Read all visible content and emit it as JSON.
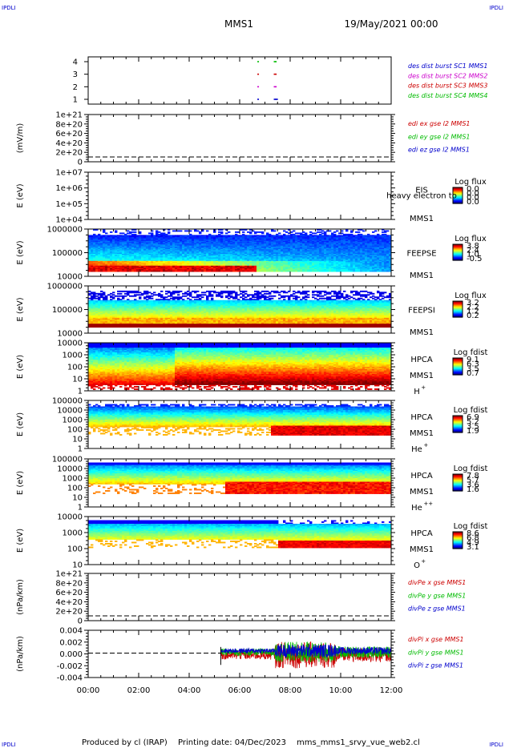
{
  "header": {
    "corner_label": "IPDLI",
    "spacecraft": "MMS1",
    "start_time": "19/May/2021 00:00"
  },
  "footer": {
    "produced_by": "Produced by cl (IRAP)",
    "printing_date": "Printing date: 04/Dec/2023",
    "filename": "mms_mms1_srvy_vue_web2.cl"
  },
  "colors": {
    "mms1": "#0000cc",
    "mms2": "#cc00cc",
    "mms3": "#cc0000",
    "mms4": "#00bb00"
  },
  "chart_data": [
    {
      "id": "burst",
      "type": "scatter",
      "yticks": [
        "4",
        "3",
        "2",
        "1"
      ],
      "legend": [
        {
          "label": "des dist burst SC1 MMS1",
          "color": "#0000cc"
        },
        {
          "label": "des dist burst SC2 MMS2",
          "color": "#cc00cc"
        },
        {
          "label": "des dist burst SC3 MMS3",
          "color": "#cc0000"
        },
        {
          "label": "des dist burst SC4 MMS4",
          "color": "#00bb00"
        }
      ],
      "bursts": [
        {
          "sc": 1,
          "times_h": [
            6.7,
            7.35,
            7.4,
            7.45
          ]
        },
        {
          "sc": 2,
          "times_h": [
            6.7,
            7.35,
            7.4
          ]
        },
        {
          "sc": 3,
          "times_h": [
            6.7,
            7.35,
            7.4
          ]
        },
        {
          "sc": 4,
          "times_h": [
            6.7,
            7.35,
            7.4
          ]
        }
      ]
    },
    {
      "id": "edi",
      "type": "line",
      "ylabel": "(mV/m)",
      "yticks": [
        "1e+21",
        "8e+20",
        "6e+20",
        "4e+20",
        "2e+20",
        "0"
      ],
      "legend": [
        {
          "label": "edi ex gse l2 MMS1",
          "color": "#cc0000"
        },
        {
          "label": "edi ey gse l2 MMS1",
          "color": "#00bb00"
        },
        {
          "label": "edi ez gse l2 MMS1",
          "color": "#0000cc"
        }
      ]
    },
    {
      "id": "eis",
      "type": "heatmap",
      "ylabel": "E (eV)",
      "yticks": [
        "1e+07",
        "1e+06",
        "1e+05",
        "1e+04"
      ],
      "instrument": "EIS",
      "overlay_text": "heavy electron to",
      "spacecraft": "MMS1",
      "colorbar_title": "Log flux",
      "colorbar_ticks": [
        "0.0",
        "0.0",
        "0.0",
        "0.0"
      ]
    },
    {
      "id": "feepse",
      "type": "heatmap",
      "ylabel": "E (eV)",
      "yticks": [
        "1000000",
        "100000",
        "10000"
      ],
      "instrument": "FEEPSE",
      "spacecraft": "MMS1",
      "colorbar_title": "Log flux",
      "colorbar_ticks": [
        "3.8",
        "2.4",
        "1.0",
        "-0.5"
      ]
    },
    {
      "id": "feepsi",
      "type": "heatmap",
      "ylabel": "E (eV)",
      "yticks": [
        "1000000",
        "100000",
        "10000"
      ],
      "instrument": "FEEPSI",
      "spacecraft": "MMS1",
      "colorbar_title": "Log flux",
      "colorbar_ticks": [
        "3.2",
        "2.2",
        "1.2",
        "0.2"
      ]
    },
    {
      "id": "hpca_h",
      "type": "heatmap",
      "ylabel": "E (eV)",
      "yticks": [
        "10000",
        "1000",
        "100",
        "10",
        "1"
      ],
      "instrument": "HPCA",
      "spacecraft": "MMS1",
      "species": "H",
      "species_sup": "+",
      "colorbar_title": "Log fdist",
      "colorbar_ticks": [
        "9.1",
        "6.3",
        "3.5",
        "0.7"
      ]
    },
    {
      "id": "hpca_he",
      "type": "heatmap",
      "ylabel": "E (eV)",
      "yticks": [
        "100000",
        "10000",
        "1000",
        "100",
        "10",
        "1"
      ],
      "instrument": "HPCA",
      "spacecraft": "MMS1",
      "species": "He",
      "species_sup": "+",
      "colorbar_title": "Log fdist",
      "colorbar_ticks": [
        "6.9",
        "5.2",
        "3.5",
        "1.9"
      ]
    },
    {
      "id": "hpca_hepp",
      "type": "heatmap",
      "ylabel": "E (eV)",
      "yticks": [
        "100000",
        "10000",
        "1000",
        "100",
        "10",
        "1"
      ],
      "instrument": "HPCA",
      "spacecraft": "MMS1",
      "species": "He",
      "species_sup": "++",
      "colorbar_title": "Log fdist",
      "colorbar_ticks": [
        "7.8",
        "5.7",
        "3.6",
        "1.6"
      ]
    },
    {
      "id": "hpca_o",
      "type": "heatmap",
      "ylabel": "E (eV)",
      "yticks": [
        "10000",
        "1000",
        "100",
        "10"
      ],
      "instrument": "HPCA",
      "spacecraft": "MMS1",
      "species": "O",
      "species_sup": "+",
      "colorbar_title": "Log fdist",
      "colorbar_ticks": [
        "8.6",
        "6.8",
        "4.9",
        "3.1"
      ]
    },
    {
      "id": "divpe",
      "type": "line",
      "ylabel": "(nPa/km)",
      "yticks": [
        "1e+21",
        "8e+20",
        "6e+20",
        "4e+20",
        "2e+20",
        "0"
      ],
      "legend": [
        {
          "label": "divPe x gse MMS1",
          "color": "#cc0000"
        },
        {
          "label": "divPe y gse MMS1",
          "color": "#00bb00"
        },
        {
          "label": "divPe z gse MMS1",
          "color": "#0000cc"
        }
      ]
    },
    {
      "id": "divpi",
      "type": "line",
      "ylabel": "(nPa/km)",
      "yticks": [
        "0.004",
        "0.002",
        "0.000",
        "-0.002",
        "-0.004"
      ],
      "ylim": [
        -0.005,
        0.005
      ],
      "data_start_h": 5.25,
      "data_end_h": 12.0,
      "legend": [
        {
          "label": "divPi x gse MMS1",
          "color": "#cc0000"
        },
        {
          "label": "divPi y gse MMS1",
          "color": "#00bb00"
        },
        {
          "label": "divPi z gse MMS1",
          "color": "#0000cc"
        }
      ]
    }
  ],
  "xaxis": {
    "ticks": [
      "00:00",
      "02:00",
      "04:00",
      "06:00",
      "08:00",
      "10:00",
      "12:00"
    ],
    "range_h": [
      0,
      12
    ]
  }
}
